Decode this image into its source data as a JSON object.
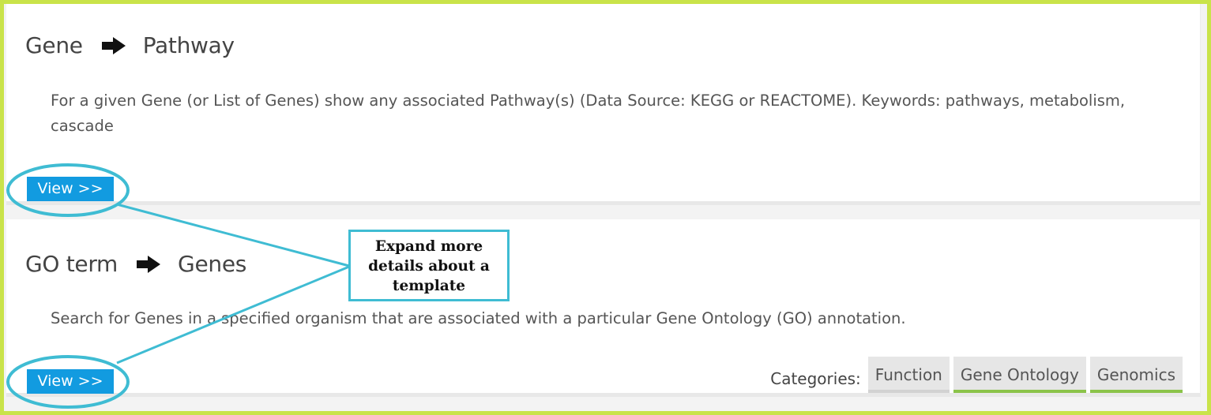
{
  "templates": [
    {
      "from": "Gene",
      "to": "Pathway",
      "description": "For a given Gene (or List of Genes) show any associated Pathway(s) (Data Source: KEGG or REACTOME). Keywords: pathways, metabolism, cascade",
      "view_label": "View >>"
    },
    {
      "from": "GO term",
      "to": "Genes",
      "description": "Search for Genes in a specified organism that are associated with a particular Gene Ontology (GO) annotation.",
      "view_label": "View >>",
      "categories_label": "Categories:",
      "categories": [
        "Function",
        "Gene Ontology",
        "Genomics"
      ]
    }
  ],
  "annotation": {
    "callout_text": "Expand more details about a template",
    "color": "#3fbcd3"
  },
  "colors": {
    "border_accent": "#c9e34a",
    "view_button": "#129be0",
    "tag_green": "#8bc34a"
  },
  "icons": {
    "arrow": "arrow-right-icon"
  }
}
